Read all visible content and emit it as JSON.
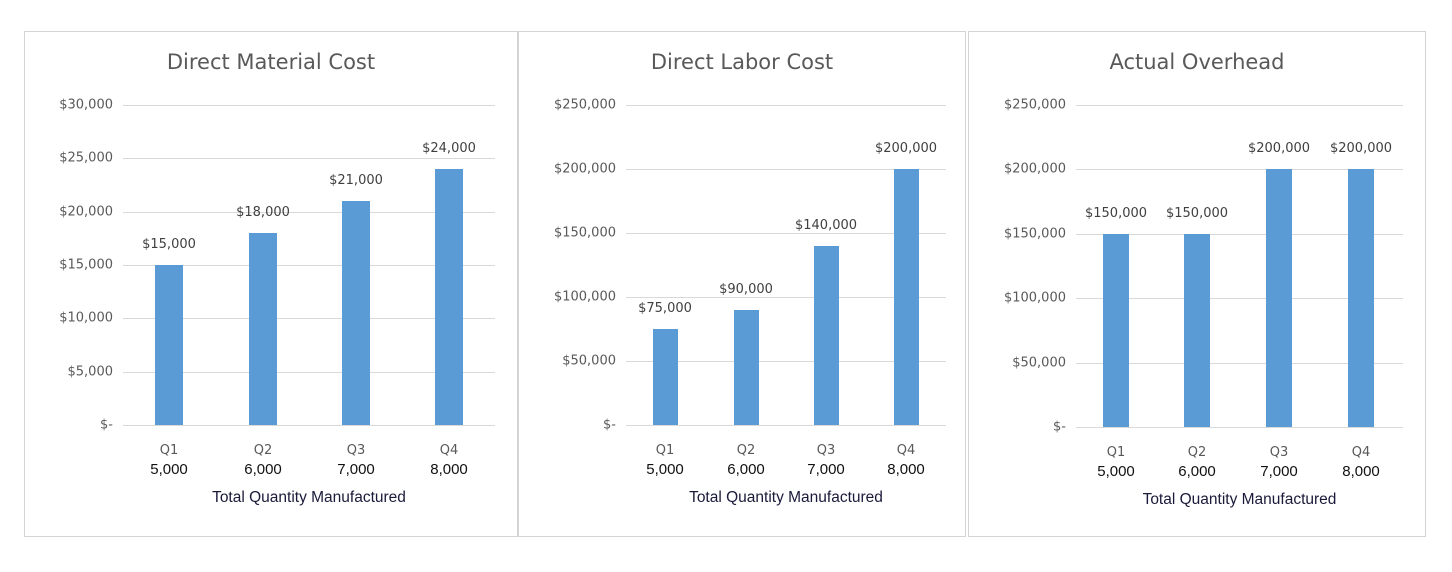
{
  "chart_data": [
    {
      "type": "bar",
      "title": "Direct Material Cost",
      "categories": [
        "Q1",
        "Q2",
        "Q3",
        "Q4"
      ],
      "quantities": [
        "5,000",
        "6,000",
        "7,000",
        "8,000"
      ],
      "values": [
        15000,
        18000,
        21000,
        24000
      ],
      "value_labels": [
        "$15,000",
        "$18,000",
        "$21,000",
        "$24,000"
      ],
      "xlabel": "Total Quantity Manufactured",
      "ylabel": "",
      "ylim": [
        0,
        30000
      ],
      "yticks": [
        "$30,000",
        "$25,000",
        "$20,000",
        "$15,000",
        "$10,000",
        "$5,000",
        "$-"
      ],
      "grid": true,
      "legend": "none",
      "bar_color": "#5b9bd5"
    },
    {
      "type": "bar",
      "title": "Direct Labor Cost",
      "categories": [
        "Q1",
        "Q2",
        "Q3",
        "Q4"
      ],
      "quantities": [
        "5,000",
        "6,000",
        "7,000",
        "8,000"
      ],
      "values": [
        75000,
        90000,
        140000,
        200000
      ],
      "value_labels": [
        "$75,000",
        "$90,000",
        "$140,000",
        "$200,000"
      ],
      "xlabel": "Total Quantity Manufactured",
      "ylabel": "",
      "ylim": [
        0,
        250000
      ],
      "yticks": [
        "$250,000",
        "$200,000",
        "$150,000",
        "$100,000",
        "$50,000",
        "$-"
      ],
      "grid": true,
      "legend": "none",
      "bar_color": "#5b9bd5"
    },
    {
      "type": "bar",
      "title": "Actual Overhead",
      "categories": [
        "Q1",
        "Q2",
        "Q3",
        "Q4"
      ],
      "quantities": [
        "5,000",
        "6,000",
        "7,000",
        "8,000"
      ],
      "values": [
        150000,
        150000,
        200000,
        200000
      ],
      "value_labels": [
        "$150,000",
        "$150,000",
        "$200,000",
        "$200,000"
      ],
      "xlabel": "Total Quantity Manufactured",
      "ylabel": "",
      "ylim": [
        0,
        250000
      ],
      "yticks": [
        "$250,000",
        "$200,000",
        "$150,000",
        "$100,000",
        "$50,000",
        "$-"
      ],
      "grid": true,
      "legend": "none",
      "bar_color": "#5b9bd5"
    }
  ]
}
